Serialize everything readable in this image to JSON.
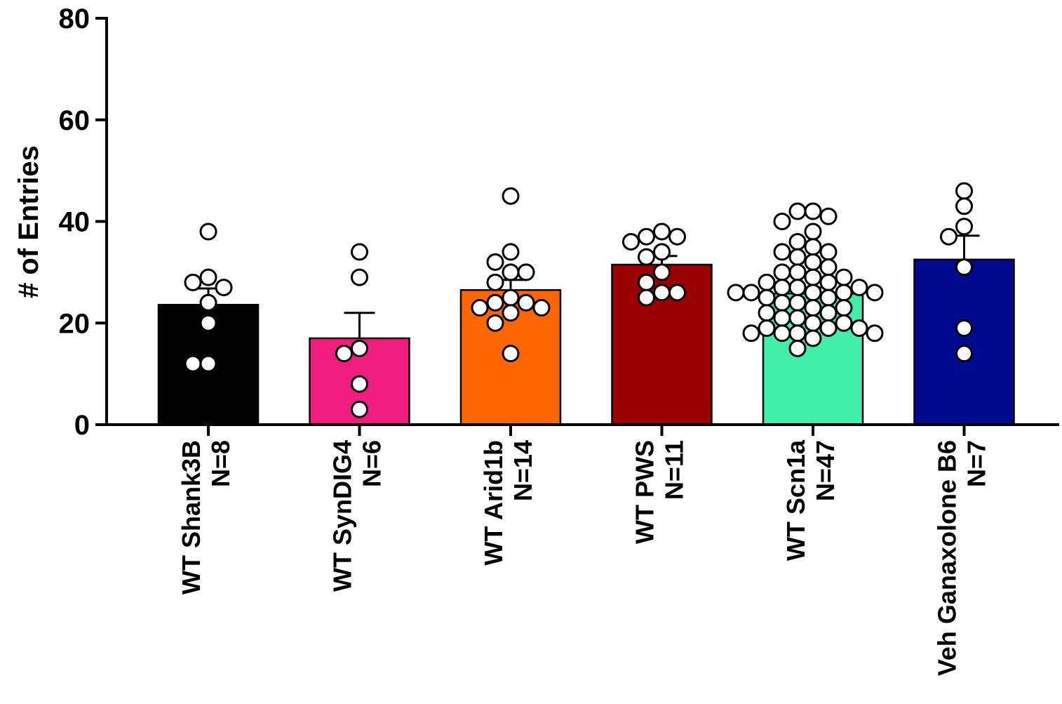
{
  "chart_data": {
    "type": "bar",
    "ylabel": "# of Entries",
    "ylim": [
      0,
      80
    ],
    "yticks": [
      "0",
      "20",
      "40",
      "60",
      "80"
    ],
    "categories": [
      {
        "name": "WT Shank3B",
        "n_label": "N=8",
        "color": "#000000",
        "mean": 23.6,
        "sem_upper": 26.8,
        "points": [
          38,
          29,
          28,
          27,
          24,
          20,
          12,
          12
        ]
      },
      {
        "name": "WT SynDIG4",
        "n_label": "N=6",
        "color": "#f01d7f",
        "mean": 17,
        "sem_upper": 22,
        "points": [
          34,
          29,
          15,
          14,
          8,
          3
        ]
      },
      {
        "name": "WT Arid1b",
        "n_label": "N=14",
        "color": "#ff6600",
        "mean": 26.5,
        "sem_upper": 28.5,
        "points": [
          45,
          34,
          32,
          30,
          30,
          28,
          25,
          24,
          24,
          23,
          23,
          22,
          20,
          14
        ]
      },
      {
        "name": "WT PWS",
        "n_label": "N=11",
        "color": "#990000",
        "mean": 31.5,
        "sem_upper": 33.2,
        "points": [
          38,
          37,
          37,
          36,
          34,
          33,
          30,
          28,
          26,
          26,
          25
        ]
      },
      {
        "name": "WT Scn1a",
        "n_label": "N=47",
        "color": "#40efaa",
        "mean": 25.8,
        "sem_upper": 27,
        "points": [
          42,
          42,
          41,
          40,
          38,
          36,
          35,
          34,
          34,
          33,
          32,
          31,
          30,
          30,
          29,
          29,
          28,
          28,
          27,
          27,
          27,
          26,
          26,
          26,
          26,
          26,
          25,
          25,
          24,
          24,
          23,
          23,
          22,
          22,
          21,
          21,
          20,
          20,
          19,
          19,
          19,
          18,
          18,
          18,
          18,
          17,
          15
        ]
      },
      {
        "name": "Veh Ganaxolone B6",
        "n_label": "N=7",
        "color": "#000a8e",
        "mean": 32.5,
        "sem_upper": 37.2,
        "points": [
          46,
          43,
          39,
          37,
          31,
          19,
          14
        ]
      }
    ]
  }
}
